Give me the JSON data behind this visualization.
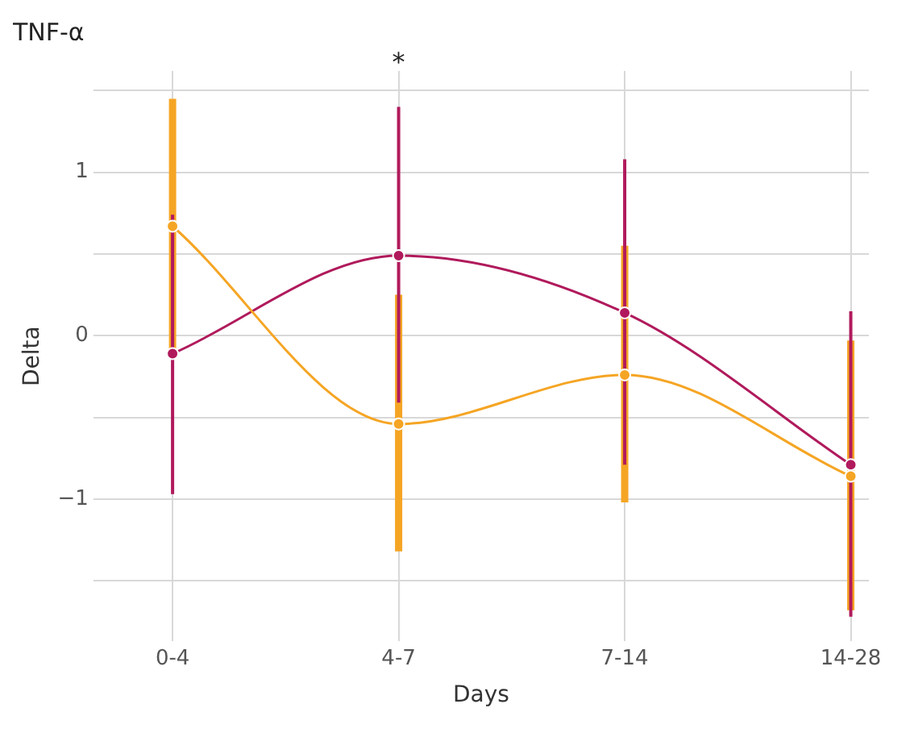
{
  "chart_data": {
    "type": "line",
    "title": "TNF-α",
    "xlabel": "Days",
    "ylabel": "Delta",
    "categories": [
      "0-4",
      "4-7",
      "7-14",
      "14-28"
    ],
    "series": [
      {
        "color": "#f5a524",
        "values": [
          0.67,
          -0.54,
          -0.24,
          -0.86
        ],
        "errors": [
          [
            -0.12,
            1.45
          ],
          [
            -1.32,
            0.25
          ],
          [
            -1.02,
            0.55
          ],
          [
            -1.68,
            -0.03
          ]
        ]
      },
      {
        "color": "#b01a5c",
        "values": [
          -0.11,
          0.49,
          0.14,
          -0.79
        ],
        "errors": [
          [
            -0.97,
            0.74
          ],
          [
            -0.41,
            1.4
          ],
          [
            -0.79,
            1.08
          ],
          [
            -1.72,
            0.15
          ]
        ]
      }
    ],
    "ylim": [
      -1.87,
      1.62
    ],
    "yticks": [
      {
        "value": -1.5,
        "label": null
      },
      {
        "value": -1,
        "label": "−1"
      },
      {
        "value": -0.5,
        "label": null
      },
      0,
      {
        "value": 0.5,
        "label": null
      },
      1,
      {
        "value": 1.5,
        "label": null
      }
    ],
    "annotations": [
      "*"
    ],
    "grid": true,
    "legend": false,
    "marker": "circle",
    "line_style": "solid"
  }
}
